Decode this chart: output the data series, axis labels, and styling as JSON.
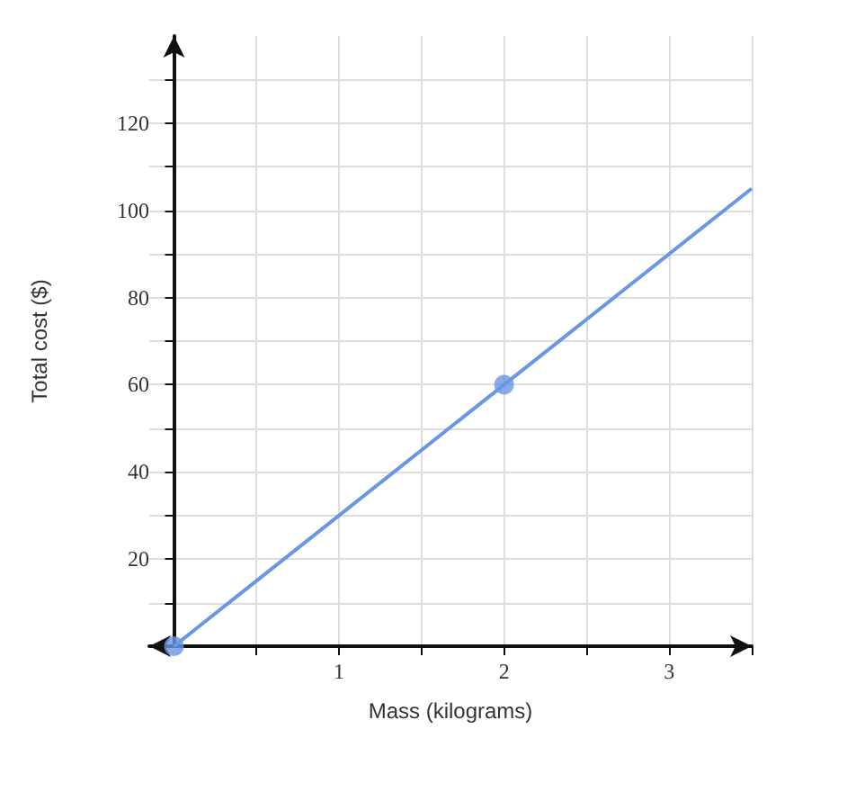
{
  "chart_data": {
    "type": "line",
    "xlabel": "Mass (kilograms)",
    "ylabel": "Total cost ($)",
    "series": [
      {
        "color": "#6a96e6",
        "x": [
          0,
          3.5
        ],
        "values": [
          0,
          105
        ]
      },
      {
        "type": "scatter",
        "color": "#6a96e6",
        "x": [
          0,
          2
        ],
        "values": [
          0,
          60
        ],
        "marker": "circle"
      }
    ],
    "xlim": [
      -0.15,
      3.5
    ],
    "ylim": [
      0,
      140
    ],
    "xticks": [
      {
        "value": 0.5,
        "label": null
      },
      1,
      {
        "value": 1.5,
        "label": null
      },
      2,
      {
        "value": 2.5,
        "label": null
      },
      3,
      {
        "value": 3.5,
        "label": null
      }
    ],
    "yticks": [
      {
        "value": 10,
        "label": null
      },
      20,
      {
        "value": 30,
        "label": null
      },
      40,
      {
        "value": 50,
        "label": null
      },
      60,
      {
        "value": 70,
        "label": null
      },
      80,
      {
        "value": 90,
        "label": null
      },
      100,
      {
        "value": 110,
        "label": null
      },
      120,
      {
        "value": 130,
        "label": null
      }
    ],
    "grid": true
  }
}
